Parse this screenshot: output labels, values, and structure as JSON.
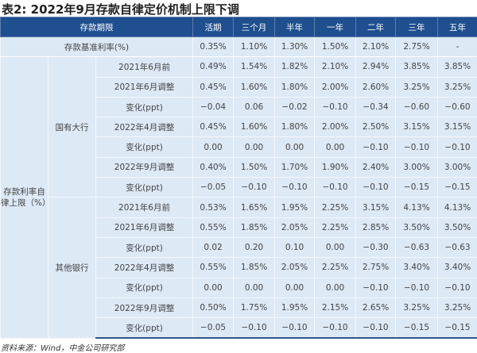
{
  "title": "表2: 2022年9月存款自律定价机制上限下调",
  "header": {
    "first": "存款期限",
    "cols": [
      "活期",
      "三个月",
      "半年",
      "一年",
      "二年",
      "三年",
      "五年"
    ]
  },
  "base": {
    "label": "存款基准利率(%)",
    "values": [
      "0.35%",
      "1.10%",
      "1.30%",
      "1.50%",
      "2.10%",
      "2.75%",
      "-"
    ]
  },
  "group_label": "存款利率自律上限（%）",
  "banks": [
    {
      "name": "国有大行",
      "rows": [
        {
          "label": "2021年6月前",
          "values": [
            "0.49%",
            "1.54%",
            "1.82%",
            "2.10%",
            "2.94%",
            "3.85%",
            "3.85%"
          ]
        },
        {
          "label": "2021年6月调整",
          "values": [
            "0.45%",
            "1.60%",
            "1.80%",
            "2.00%",
            "2.60%",
            "3.25%",
            "3.25%"
          ]
        },
        {
          "label": "变化(ppt)",
          "values": [
            "−0.04",
            "0.06",
            "−0.02",
            "−0.10",
            "−0.34",
            "−0.60",
            "−0.60"
          ]
        },
        {
          "label": "2022年4月调整",
          "values": [
            "0.45%",
            "1.60%",
            "1.80%",
            "2.00%",
            "2.50%",
            "3.15%",
            "3.15%"
          ]
        },
        {
          "label": "变化(ppt)",
          "values": [
            "0.00",
            "0.00",
            "0.00",
            "0.00",
            "−0.10",
            "−0.10",
            "−0.10"
          ]
        },
        {
          "label": "2022年9月调整",
          "values": [
            "0.40%",
            "1.50%",
            "1.70%",
            "1.90%",
            "2.40%",
            "3.00%",
            "3.00%"
          ]
        },
        {
          "label": "变化(ppt)",
          "values": [
            "−0.05",
            "−0.10",
            "−0.10",
            "−0.10",
            "−0.10",
            "−0.15",
            "−0.15"
          ]
        }
      ]
    },
    {
      "name": "其他银行",
      "rows": [
        {
          "label": "2021年6月前",
          "values": [
            "0.53%",
            "1.65%",
            "1.95%",
            "2.25%",
            "3.15%",
            "4.13%",
            "4.13%"
          ]
        },
        {
          "label": "2021年6月调整",
          "values": [
            "0.55%",
            "1.85%",
            "2.05%",
            "2.25%",
            "2.85%",
            "3.50%",
            "3.50%"
          ]
        },
        {
          "label": "变化(ppt)",
          "values": [
            "0.02",
            "0.20",
            "0.10",
            "0.00",
            "−0.30",
            "−0.63",
            "−0.63"
          ]
        },
        {
          "label": "2022年4月调整",
          "values": [
            "0.55%",
            "1.85%",
            "2.05%",
            "2.25%",
            "2.75%",
            "3.40%",
            "3.40%"
          ]
        },
        {
          "label": "变化(ppt)",
          "values": [
            "0.00",
            "0.00",
            "0.00",
            "0.00",
            "−0.10",
            "−0.10",
            "−0.10"
          ]
        },
        {
          "label": "2022年9月调整",
          "values": [
            "0.50%",
            "1.75%",
            "1.95%",
            "2.15%",
            "2.65%",
            "3.25%",
            "3.25%"
          ]
        },
        {
          "label": "变化(ppt)",
          "values": [
            "−0.05",
            "−0.10",
            "−0.10",
            "−0.10",
            "−0.10",
            "−0.15",
            "−0.15"
          ]
        }
      ]
    }
  ],
  "source": "资料来源：Wind，中金公司研究部"
}
